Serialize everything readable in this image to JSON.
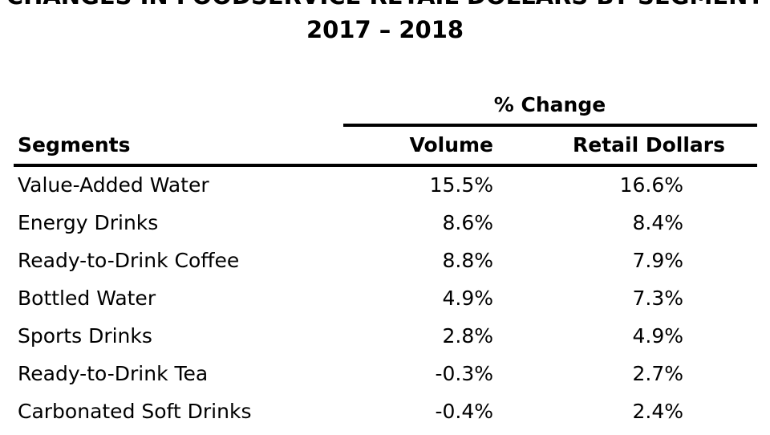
{
  "chart_data": {
    "type": "table",
    "title": "CHANGES IN FOODSERVICE RETAIL DOLLARS BY SEGMENT",
    "subtitle": "2017 – 2018",
    "group_header": "% Change",
    "columns": [
      "Segments",
      "Volume",
      "Retail Dollars"
    ],
    "rows": [
      {
        "segment": "Value-Added Water",
        "volume": "15.5%",
        "retail": "16.6%"
      },
      {
        "segment": "Energy Drinks",
        "volume": "8.6%",
        "retail": "8.4%"
      },
      {
        "segment": "Ready-to-Drink Coffee",
        "volume": "8.8%",
        "retail": "7.9%"
      },
      {
        "segment": "Bottled Water",
        "volume": "4.9%",
        "retail": "7.3%"
      },
      {
        "segment": "Sports Drinks",
        "volume": "2.8%",
        "retail": "4.9%"
      },
      {
        "segment": "Ready-to-Drink Tea",
        "volume": "-0.3%",
        "retail": "2.7%"
      },
      {
        "segment": "Carbonated Soft Drinks",
        "volume": "-0.4%",
        "retail": "2.4%"
      }
    ]
  }
}
